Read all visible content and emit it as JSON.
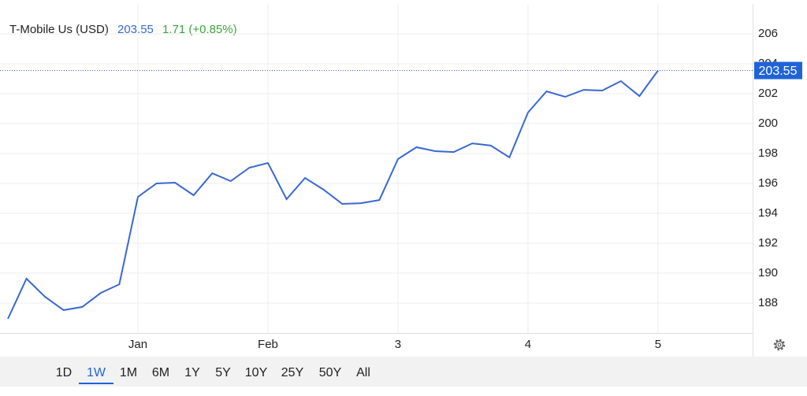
{
  "chart_data": {
    "type": "line",
    "title": "T-Mobile Us (USD)",
    "change": "1.71 (+0.85%)",
    "categories": [
      null,
      null,
      null,
      null,
      null,
      null,
      null,
      "Jan",
      null,
      null,
      null,
      null,
      null,
      null,
      "Feb",
      null,
      null,
      null,
      null,
      null,
      null,
      "3",
      null,
      null,
      null,
      null,
      null,
      null,
      "4",
      null,
      null,
      null,
      null,
      null,
      null,
      "5"
    ],
    "series": [
      {
        "name": "T-Mobile Us (USD)",
        "color": "#3868d4",
        "values": [
          186.95,
          189.63,
          188.42,
          187.53,
          187.74,
          188.68,
          189.26,
          195.1,
          196.0,
          196.05,
          195.21,
          196.68,
          196.16,
          197.05,
          197.37,
          194.95,
          196.37,
          195.58,
          194.63,
          194.68,
          194.89,
          197.63,
          198.42,
          198.16,
          198.1,
          198.68,
          198.53,
          197.74,
          200.74,
          202.16,
          201.79,
          202.26,
          202.21,
          202.84,
          201.84,
          203.55
        ]
      }
    ],
    "ylim": [
      186,
      208
    ],
    "yticks": [
      188,
      190,
      192,
      194,
      196,
      198,
      200,
      202,
      204,
      206
    ],
    "grid": true,
    "ranges": [
      "1D",
      "1W",
      "1M",
      "6M",
      "1Y",
      "5Y",
      "10Y",
      "25Y",
      "50Y",
      "All"
    ],
    "selected_range": "1W"
  }
}
